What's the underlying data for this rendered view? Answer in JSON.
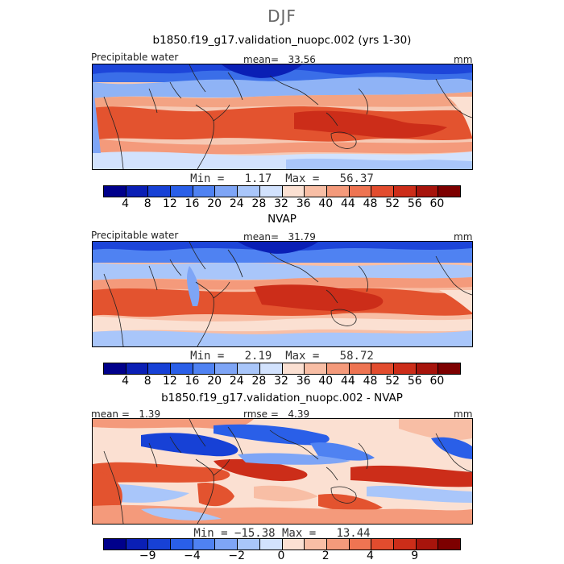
{
  "figure": {
    "season": "DJF"
  },
  "colorbars": {
    "absolute": {
      "colors": [
        "#00008b",
        "#0a1fb5",
        "#1741d6",
        "#2a5fe8",
        "#4f82f2",
        "#7ea5f6",
        "#a9c6fa",
        "#d2e2fd",
        "#fbe0d2",
        "#f8bea5",
        "#f49a7b",
        "#ee7452",
        "#e24c2e",
        "#cc2d19",
        "#a7140c",
        "#7d0000"
      ],
      "ticks": [
        "4",
        "8",
        "12",
        "16",
        "20",
        "24",
        "28",
        "32",
        "36",
        "40",
        "44",
        "48",
        "52",
        "56",
        "60"
      ]
    },
    "difference": {
      "colors": [
        "#00008b",
        "#0a1fb5",
        "#1741d6",
        "#2a5fe8",
        "#4f82f2",
        "#7ea5f6",
        "#a9c6fa",
        "#d2e2fd",
        "#fbe0d2",
        "#f8bea5",
        "#f49a7b",
        "#ee7452",
        "#e24c2e",
        "#cc2d19",
        "#a7140c",
        "#7d0000"
      ],
      "ticks": [
        "−9",
        "−4",
        "−2",
        "0",
        "2",
        "4",
        "9"
      ]
    }
  },
  "chart_data": [
    {
      "type": "heatmap",
      "title": "b1850.f19_g17.validation_nuopc.002 (yrs 1-30)",
      "variable": "Precipitable water",
      "units": "mm",
      "mean_label": "mean=",
      "mean": "33.56",
      "min_label": "Min =",
      "min": "1.17",
      "max_label": "Max =",
      "max": "56.37",
      "levels": [
        4,
        8,
        12,
        16,
        20,
        24,
        28,
        32,
        36,
        40,
        44,
        48,
        52,
        56,
        60
      ]
    },
    {
      "type": "heatmap",
      "title": "NVAP",
      "variable": "Precipitable water",
      "units": "mm",
      "mean_label": "mean=",
      "mean": "31.79",
      "min_label": "Min =",
      "min": "2.19",
      "max_label": "Max =",
      "max": "58.72",
      "levels": [
        4,
        8,
        12,
        16,
        20,
        24,
        28,
        32,
        36,
        40,
        44,
        48,
        52,
        56,
        60
      ]
    },
    {
      "type": "heatmap",
      "title": "b1850.f19_g17.validation_nuopc.002 - NVAP",
      "units": "mm",
      "mean_label": "mean =",
      "mean": "1.39",
      "rmse_label": "rmse =",
      "rmse": "4.39",
      "min_label": "Min =",
      "min": "−15.38",
      "max_label": "Max =",
      "max": "13.44",
      "levels": [
        -9,
        -4,
        -2,
        0,
        2,
        4,
        9
      ]
    }
  ]
}
